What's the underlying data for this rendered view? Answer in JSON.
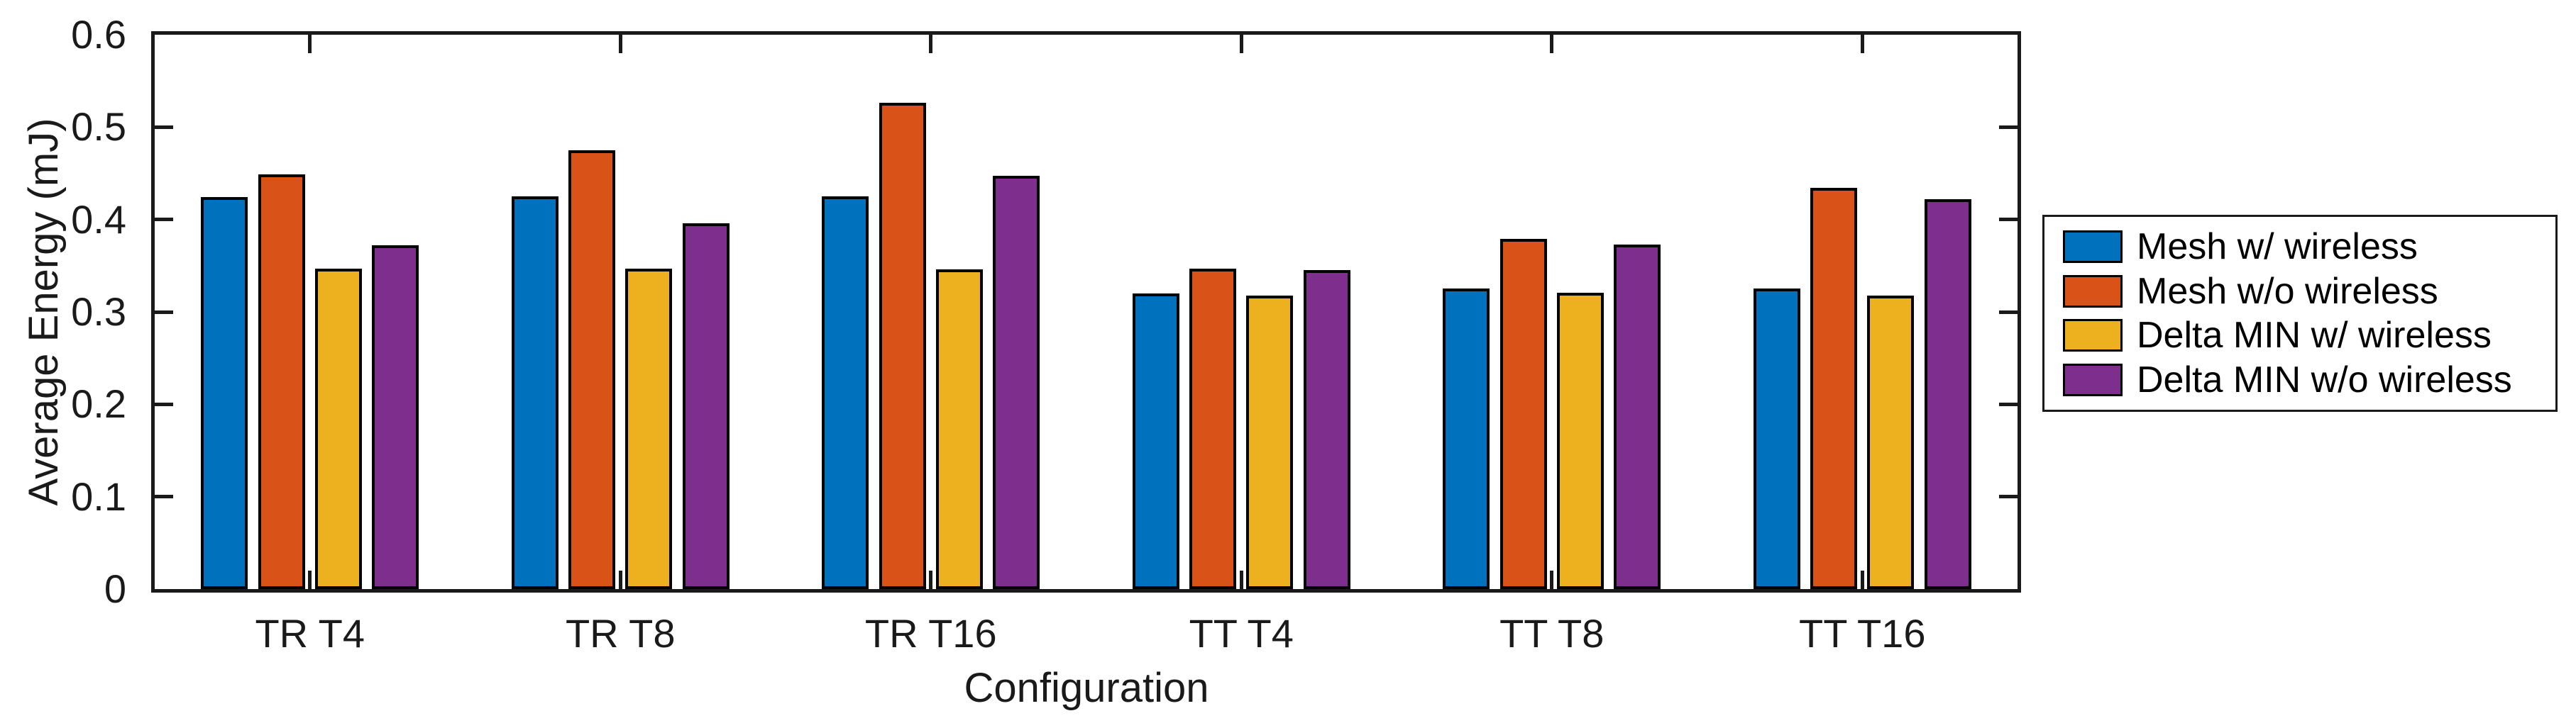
{
  "chart_data": {
    "type": "bar",
    "title": "",
    "xlabel": "Configuration",
    "ylabel": "Average Energy (mJ)",
    "categories": [
      "TR T4",
      "TR T8",
      "TR T16",
      "TT T4",
      "TT T8",
      "TT T16"
    ],
    "series": [
      {
        "name": "Mesh w/ wireless",
        "color": "#0072BD",
        "values": [
          0.424,
          0.425,
          0.425,
          0.32,
          0.325,
          0.325
        ]
      },
      {
        "name": "Mesh w/o wireless",
        "color": "#D95319",
        "values": [
          0.449,
          0.475,
          0.526,
          0.347,
          0.379,
          0.434
        ]
      },
      {
        "name": "Delta MIN w/ wireless",
        "color": "#EDB120",
        "values": [
          0.347,
          0.347,
          0.346,
          0.318,
          0.321,
          0.318
        ]
      },
      {
        "name": "Delta MIN w/o wireless",
        "color": "#7E2F8E",
        "values": [
          0.372,
          0.396,
          0.447,
          0.345,
          0.373,
          0.422
        ]
      }
    ],
    "ylim": [
      0,
      0.6
    ],
    "y_ticks": [
      0,
      0.1,
      0.2,
      0.3,
      0.4,
      0.5,
      0.6
    ],
    "y_tick_labels": [
      "0",
      "0.1",
      "0.2",
      "0.3",
      "0.4",
      "0.5",
      "0.6"
    ],
    "grid": false,
    "legend_position": "outside-right",
    "bar_edge_color": "#000000",
    "axis_color": "#1a1a1a",
    "background_color": "#ffffff"
  }
}
